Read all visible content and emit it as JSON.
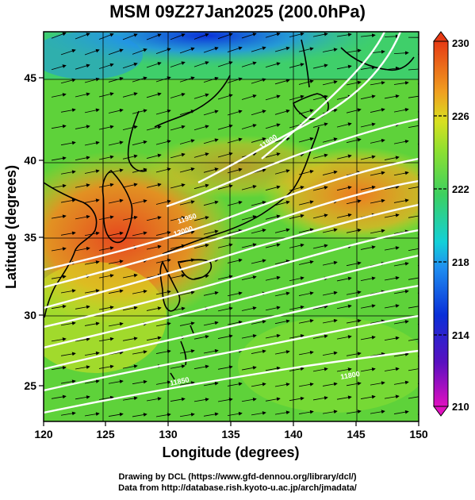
{
  "title": "MSM 09Z27Jan2025 (200.0hPa)",
  "xlabel": "Longitude (degrees)",
  "ylabel": "Latitude  (degrees)",
  "x_ticks": [
    "120",
    "125",
    "130",
    "135",
    "140",
    "145",
    "150"
  ],
  "y_ticks": [
    "25",
    "30",
    "35",
    "40",
    "45"
  ],
  "colorbar": {
    "ticks": [
      "230",
      "226",
      "222",
      "218",
      "214",
      "210"
    ],
    "range": [
      210,
      230
    ]
  },
  "credits": {
    "line1": "Drawing by DCL (https://www.gfd-dennou.org/library/dcl/)",
    "line2": "Data from http://database.rish.kyoto-u.ac.jp/arch/jmadata/"
  },
  "contour_labels": [
    "12000",
    "11950",
    "11900",
    "11850",
    "11800"
  ],
  "colors": {
    "high": "#e6471e",
    "mid": "#3fcf3a",
    "low": "#0a2fd8",
    "contour": "#ffffff"
  }
}
